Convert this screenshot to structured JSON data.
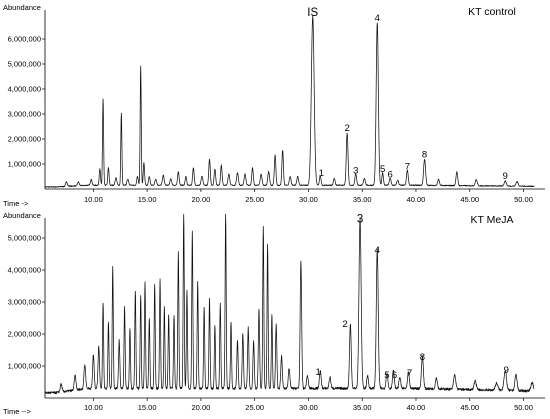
{
  "chart_data": [
    {
      "type": "line",
      "panel_label": "KT control",
      "ylabel": "Abundance",
      "xlabel": "Time ->",
      "xlim": [
        5.5,
        52
      ],
      "ylim": [
        0,
        7000000
      ],
      "y_ticks": [
        {
          "v": 1000000,
          "label": "1,000,000"
        },
        {
          "v": 2000000,
          "label": "2,000,000"
        },
        {
          "v": 3000000,
          "label": "3,000,000"
        },
        {
          "v": 4000000,
          "label": "4,000,000"
        },
        {
          "v": 5000000,
          "label": "5,000,000"
        },
        {
          "v": 6000000,
          "label": "6,000,000"
        }
      ],
      "x_ticks": [
        {
          "v": 10,
          "label": "10.00"
        },
        {
          "v": 15,
          "label": "15.00"
        },
        {
          "v": 20,
          "label": "20.00"
        },
        {
          "v": 25,
          "label": "25.00"
        },
        {
          "v": 30,
          "label": "30.00"
        },
        {
          "v": 35,
          "label": "35.00"
        },
        {
          "v": 40,
          "label": "40.00"
        },
        {
          "v": 45,
          "label": "45.00"
        },
        {
          "v": 50,
          "label": "50.00"
        }
      ],
      "baseline": 150000,
      "peaks": [
        [
          7.5,
          180000,
          0.08
        ],
        [
          8.6,
          150000,
          0.08
        ],
        [
          9.8,
          250000,
          0.07
        ],
        [
          10.6,
          650000,
          0.06
        ],
        [
          10.9,
          3450000,
          0.05
        ],
        [
          11.4,
          700000,
          0.06
        ],
        [
          12.1,
          300000,
          0.08
        ],
        [
          12.6,
          2900000,
          0.05
        ],
        [
          13.2,
          250000,
          0.08
        ],
        [
          14.1,
          350000,
          0.07
        ],
        [
          14.4,
          4750000,
          0.05
        ],
        [
          14.7,
          900000,
          0.06
        ],
        [
          15.2,
          350000,
          0.07
        ],
        [
          15.8,
          250000,
          0.08
        ],
        [
          16.5,
          400000,
          0.08
        ],
        [
          17.2,
          250000,
          0.08
        ],
        [
          17.9,
          550000,
          0.07
        ],
        [
          18.6,
          350000,
          0.07
        ],
        [
          19.3,
          700000,
          0.07
        ],
        [
          20.1,
          350000,
          0.08
        ],
        [
          20.8,
          1050000,
          0.07
        ],
        [
          21.3,
          650000,
          0.07
        ],
        [
          21.9,
          800000,
          0.07
        ],
        [
          22.6,
          450000,
          0.08
        ],
        [
          23.4,
          500000,
          0.08
        ],
        [
          24.1,
          450000,
          0.08
        ],
        [
          24.8,
          700000,
          0.07
        ],
        [
          25.6,
          450000,
          0.08
        ],
        [
          26.3,
          550000,
          0.08
        ],
        [
          26.9,
          1200000,
          0.07
        ],
        [
          27.6,
          1400000,
          0.07
        ],
        [
          28.3,
          350000,
          0.08
        ],
        [
          29.0,
          350000,
          0.08
        ],
        [
          30.4,
          6750000,
          0.13
        ],
        [
          31.1,
          380000,
          0.07
        ],
        [
          32.4,
          280000,
          0.08
        ],
        [
          33.6,
          2100000,
          0.08
        ],
        [
          34.4,
          450000,
          0.08
        ],
        [
          35.2,
          280000,
          0.08
        ],
        [
          36.4,
          6500000,
          0.1
        ],
        [
          36.9,
          500000,
          0.07
        ],
        [
          37.6,
          280000,
          0.08
        ],
        [
          38.3,
          200000,
          0.08
        ],
        [
          39.2,
          600000,
          0.08
        ],
        [
          40.8,
          1050000,
          0.09
        ],
        [
          42.1,
          250000,
          0.08
        ],
        [
          43.8,
          550000,
          0.08
        ],
        [
          45.6,
          250000,
          0.09
        ],
        [
          48.3,
          200000,
          0.1
        ],
        [
          49.4,
          180000,
          0.1
        ]
      ],
      "labels": [
        {
          "text": "IS",
          "x": 30.4,
          "y": 6850000,
          "big": true
        },
        {
          "text": "4",
          "x": 36.4,
          "y": 6650000
        },
        {
          "text": "2",
          "x": 33.6,
          "y": 2250000
        },
        {
          "text": "1",
          "x": 31.2,
          "y": 450000
        },
        {
          "text": "3",
          "x": 34.4,
          "y": 550000
        },
        {
          "text": "5",
          "x": 36.9,
          "y": 600000
        },
        {
          "text": "6",
          "x": 37.6,
          "y": 380000
        },
        {
          "text": "7",
          "x": 39.2,
          "y": 700000
        },
        {
          "text": "8",
          "x": 40.8,
          "y": 1180000
        },
        {
          "text": "9",
          "x": 48.3,
          "y": 320000
        }
      ]
    },
    {
      "type": "line",
      "panel_label": "KT MeJA",
      "ylabel": "Abundance",
      "xlabel": "Time -->",
      "xlim": [
        5.5,
        52
      ],
      "ylim": [
        0,
        5500000
      ],
      "y_ticks": [
        {
          "v": 1000000,
          "label": "1,000,000"
        },
        {
          "v": 2000000,
          "label": "2,000,000"
        },
        {
          "v": 3000000,
          "label": "3,000,000"
        },
        {
          "v": 4000000,
          "label": "4,000,000"
        },
        {
          "v": 5000000,
          "label": "5,000,000"
        }
      ],
      "x_ticks": [
        {
          "v": 10,
          "label": "10.00"
        },
        {
          "v": 15,
          "label": "15.00"
        },
        {
          "v": 20,
          "label": "20.00"
        },
        {
          "v": 25,
          "label": "25.00"
        },
        {
          "v": 30,
          "label": "30.00"
        },
        {
          "v": 35,
          "label": "35.00"
        },
        {
          "v": 40,
          "label": "40.00"
        },
        {
          "v": 45,
          "label": "45.00"
        },
        {
          "v": 50,
          "label": "50.00"
        }
      ],
      "baseline": 300000,
      "peaks": [
        [
          7.0,
          250000,
          0.08
        ],
        [
          8.3,
          450000,
          0.08
        ],
        [
          9.2,
          750000,
          0.08
        ],
        [
          10.0,
          1050000,
          0.07
        ],
        [
          10.5,
          1300000,
          0.07
        ],
        [
          10.9,
          2700000,
          0.05
        ],
        [
          11.4,
          2100000,
          0.05
        ],
        [
          11.8,
          3800000,
          0.05
        ],
        [
          12.4,
          1500000,
          0.06
        ],
        [
          12.9,
          2550000,
          0.05
        ],
        [
          13.4,
          1900000,
          0.05
        ],
        [
          13.9,
          3050000,
          0.05
        ],
        [
          14.4,
          2900000,
          0.05
        ],
        [
          14.8,
          3300000,
          0.05
        ],
        [
          15.2,
          2200000,
          0.05
        ],
        [
          15.7,
          3250000,
          0.05
        ],
        [
          16.2,
          3400000,
          0.05
        ],
        [
          16.6,
          2550000,
          0.05
        ],
        [
          17.0,
          2300000,
          0.05
        ],
        [
          17.5,
          2300000,
          0.05
        ],
        [
          17.9,
          4250000,
          0.05
        ],
        [
          18.4,
          5450000,
          0.05
        ],
        [
          18.7,
          3050000,
          0.05
        ],
        [
          19.2,
          4900000,
          0.05
        ],
        [
          19.7,
          3350000,
          0.05
        ],
        [
          20.3,
          2550000,
          0.05
        ],
        [
          20.8,
          2800000,
          0.05
        ],
        [
          21.3,
          2000000,
          0.05
        ],
        [
          21.8,
          2700000,
          0.05
        ],
        [
          22.3,
          5450000,
          0.05
        ],
        [
          22.8,
          2100000,
          0.05
        ],
        [
          23.4,
          1500000,
          0.06
        ],
        [
          23.9,
          1700000,
          0.06
        ],
        [
          24.4,
          1900000,
          0.06
        ],
        [
          24.9,
          1500000,
          0.06
        ],
        [
          25.4,
          2450000,
          0.06
        ],
        [
          25.8,
          5100000,
          0.05
        ],
        [
          26.2,
          4500000,
          0.05
        ],
        [
          26.6,
          2300000,
          0.05
        ],
        [
          27.0,
          2000000,
          0.06
        ],
        [
          27.5,
          1000000,
          0.07
        ],
        [
          28.2,
          600000,
          0.08
        ],
        [
          29.3,
          3950000,
          0.07
        ],
        [
          29.9,
          400000,
          0.08
        ],
        [
          31.1,
          550000,
          0.08
        ],
        [
          32.0,
          350000,
          0.08
        ],
        [
          33.9,
          2000000,
          0.08
        ],
        [
          34.8,
          5300000,
          0.1
        ],
        [
          35.5,
          400000,
          0.08
        ],
        [
          36.4,
          4350000,
          0.09
        ],
        [
          37.3,
          500000,
          0.08
        ],
        [
          37.9,
          550000,
          0.08
        ],
        [
          38.5,
          350000,
          0.08
        ],
        [
          39.3,
          500000,
          0.08
        ],
        [
          40.6,
          1000000,
          0.09
        ],
        [
          41.9,
          350000,
          0.09
        ],
        [
          43.6,
          450000,
          0.1
        ],
        [
          45.5,
          280000,
          0.1
        ],
        [
          47.5,
          220000,
          0.12
        ],
        [
          48.3,
          600000,
          0.12
        ],
        [
          49.3,
          500000,
          0.1
        ],
        [
          50.8,
          250000,
          0.12
        ]
      ],
      "labels": [
        {
          "text": "3",
          "x": 34.8,
          "y": 5420000,
          "big": true
        },
        {
          "text": "4",
          "x": 36.4,
          "y": 4470000
        },
        {
          "text": "2",
          "x": 33.4,
          "y": 2150000
        },
        {
          "text": "1",
          "x": 30.9,
          "y": 650000
        },
        {
          "text": "5",
          "x": 37.3,
          "y": 560000
        },
        {
          "text": "6",
          "x": 38.0,
          "y": 560000
        },
        {
          "text": "7",
          "x": 39.4,
          "y": 620000
        },
        {
          "text": "8",
          "x": 40.6,
          "y": 1130000
        },
        {
          "text": "9",
          "x": 48.4,
          "y": 720000
        }
      ]
    }
  ]
}
